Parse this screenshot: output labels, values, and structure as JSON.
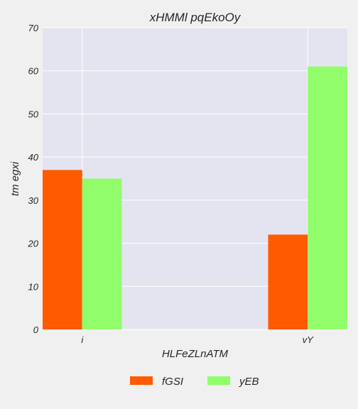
{
  "chart_data": {
    "type": "bar",
    "title": "xHMMl pqEkoOy",
    "xlabel": "HLFeZLnATM",
    "ylabel": "tm egxi",
    "categories": [
      "i",
      "vY"
    ],
    "series": [
      {
        "name": "fGSI",
        "color": "#ff5a00",
        "values": [
          37,
          22
        ]
      },
      {
        "name": "yEB",
        "color": "#92fd6a",
        "values": [
          35,
          61
        ]
      }
    ],
    "ylim": [
      0,
      70
    ],
    "yticks": [
      0,
      10,
      20,
      30,
      40,
      50,
      60,
      70
    ],
    "grid": true,
    "legend_position": "bottom-center",
    "plot_background": "#e4e4f0"
  }
}
